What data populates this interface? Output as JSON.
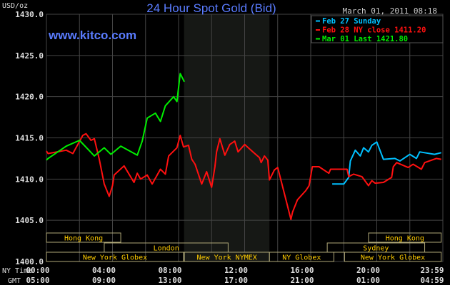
{
  "chart_data": {
    "type": "line",
    "title": "24 Hour Spot Gold (Bid)",
    "brand": "www.kitco.com",
    "timestamp": "March 01, 2011 08:18",
    "ylabel": "USD/oz",
    "ylim": [
      1400,
      1430
    ],
    "yticks": [
      "1400.0",
      "1405.0",
      "1410.0",
      "1415.0",
      "1420.0",
      "1425.0",
      "1430.0"
    ],
    "xlim_hours": [
      0,
      24
    ],
    "x_row_labels": [
      "NY Time",
      "GMT"
    ],
    "xticks_ny": [
      "00:00",
      "04:00",
      "08:00",
      "12:00",
      "16:00",
      "20:00",
      "23:59"
    ],
    "xticks_gmt": [
      "05:00",
      "09:00",
      "13:00",
      "17:00",
      "21:00",
      "01:00",
      "04:59"
    ],
    "grid": true,
    "legend_placement": "top-right",
    "colors": {
      "background": "#000000",
      "grid": "#444444",
      "title": "#5a7cff",
      "nymex_shade": "#161815",
      "session_text": "#ffcc00",
      "session_border": "#b0a878"
    },
    "series": [
      {
        "name": "Feb 27 Sunday",
        "color": "#00c0ff",
        "x": [
          17.3,
          18.0,
          18.3,
          18.4,
          18.7,
          19.0,
          19.2,
          19.5,
          19.7,
          20.0,
          20.4,
          21.1,
          21.4,
          22.0,
          22.4,
          22.6,
          23.5,
          23.9
        ],
        "y": [
          1409.4,
          1409.4,
          1410.2,
          1412.2,
          1413.5,
          1412.8,
          1413.8,
          1413.3,
          1414.1,
          1414.5,
          1412.4,
          1412.5,
          1412.2,
          1413.0,
          1412.5,
          1413.3,
          1413.0,
          1413.2
        ]
      },
      {
        "name": "Feb 28 NY close 1411.20",
        "color": "#ff1010",
        "x": [
          0.0,
          0.1,
          1.2,
          1.6,
          2.2,
          2.4,
          2.7,
          2.9,
          3.2,
          3.5,
          3.8,
          4.0,
          4.1,
          4.7,
          5.3,
          5.5,
          5.7,
          6.1,
          6.4,
          6.9,
          7.2,
          7.4,
          7.9,
          8.1,
          8.3,
          8.6,
          8.8,
          9.0,
          9.4,
          9.7,
          10.0,
          10.2,
          10.3,
          10.5,
          10.8,
          11.1,
          11.4,
          11.6,
          12.0,
          12.5,
          12.9,
          13.0,
          13.2,
          13.4,
          13.5,
          13.8,
          14.0,
          14.5,
          14.8,
          14.9,
          15.2,
          15.7,
          15.9,
          16.1,
          16.5,
          17.1,
          17.2,
          18.2,
          18.3,
          18.6,
          19.1,
          19.5,
          19.7,
          19.9,
          20.4,
          20.9,
          21.0,
          21.2,
          21.9,
          22.2,
          22.7,
          22.9,
          23.6,
          23.9
        ],
        "y": [
          1413.4,
          1413.1,
          1413.5,
          1413.1,
          1415.3,
          1415.5,
          1414.7,
          1414.9,
          1412.4,
          1409.4,
          1407.9,
          1409.2,
          1410.5,
          1411.6,
          1409.6,
          1410.7,
          1410.0,
          1410.5,
          1409.4,
          1411.2,
          1410.6,
          1412.8,
          1413.8,
          1415.3,
          1413.9,
          1414.1,
          1412.4,
          1411.8,
          1409.4,
          1410.9,
          1409.0,
          1411.5,
          1413.3,
          1414.9,
          1412.9,
          1414.2,
          1414.6,
          1413.3,
          1414.2,
          1413.3,
          1412.6,
          1412.0,
          1412.8,
          1412.3,
          1409.9,
          1411.1,
          1411.4,
          1407.5,
          1405.1,
          1406.0,
          1407.5,
          1408.6,
          1409.2,
          1411.5,
          1411.5,
          1410.7,
          1411.2,
          1411.2,
          1410.3,
          1410.6,
          1410.3,
          1409.2,
          1409.8,
          1409.5,
          1409.6,
          1410.2,
          1411.5,
          1412.0,
          1411.4,
          1411.8,
          1411.2,
          1412.0,
          1412.5,
          1412.4
        ]
      },
      {
        "name": "Mar 01 Last 1421.80",
        "color": "#00ee00",
        "x": [
          0.0,
          0.1,
          1.2,
          2.0,
          2.9,
          3.5,
          3.9,
          4.5,
          5.5,
          5.8,
          6.1,
          6.6,
          6.9,
          7.2,
          7.7,
          7.9,
          8.0,
          8.1,
          8.35
        ],
        "y": [
          1412.3,
          1412.5,
          1414.0,
          1414.7,
          1412.8,
          1413.8,
          1413.0,
          1414.0,
          1412.9,
          1414.6,
          1417.4,
          1418.0,
          1417.0,
          1418.9,
          1420.0,
          1419.4,
          1421.1,
          1422.8,
          1421.8
        ]
      }
    ],
    "shaded_period": {
      "label": "New York NYMEX",
      "start_hour": 8.33,
      "end_hour": 13.5
    },
    "sessions": [
      {
        "label": "Hong Kong",
        "row": 0,
        "start": 0,
        "end": 4.5
      },
      {
        "label": "Hong Kong",
        "row": 0,
        "start": 19.5,
        "end": 23.9
      },
      {
        "label": "London",
        "row": 1,
        "start": 3.5,
        "end": 11.0
      },
      {
        "label": "Sydney",
        "row": 1,
        "start": 17.0,
        "end": 22.9
      },
      {
        "label": "New York Globex",
        "row": 2,
        "start": 0,
        "end": 8.3
      },
      {
        "label": "New York NYMEX",
        "row": 2,
        "start": 8.35,
        "end": 13.5
      },
      {
        "label": "NY Globex",
        "row": 2,
        "start": 13.5,
        "end": 17.4
      },
      {
        "label": "New York Globex",
        "row": 2,
        "start": 18.05,
        "end": 23.9
      }
    ]
  }
}
